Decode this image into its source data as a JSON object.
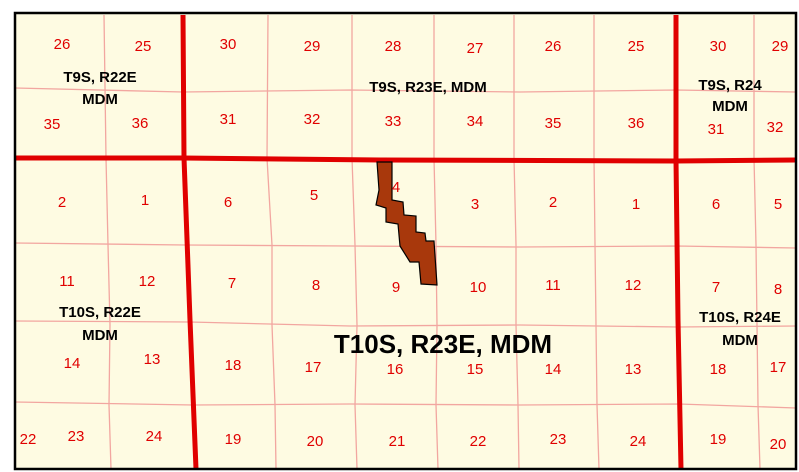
{
  "sections": [
    "26",
    "25",
    "30",
    "29",
    "28",
    "27",
    "26",
    "25",
    "30",
    "29",
    "35",
    "36",
    "31",
    "32",
    "33",
    "34",
    "35",
    "36",
    "31",
    "32",
    "2",
    "1",
    "6",
    "5",
    "4",
    "3",
    "2",
    "1",
    "6",
    "5",
    "11",
    "12",
    "7",
    "8",
    "9",
    "10",
    "11",
    "12",
    "7",
    "8",
    "14",
    "13",
    "18",
    "17",
    "16",
    "15",
    "14",
    "13",
    "18",
    "17",
    "22",
    "23",
    "24",
    "19",
    "20",
    "21",
    "22",
    "23",
    "24",
    "19",
    "20"
  ],
  "townships": [
    {
      "lines": [
        "T9S, R22E",
        "MDM"
      ]
    },
    {
      "lines": [
        "T9S, R23E, MDM"
      ]
    },
    {
      "lines": [
        "T9S, R24",
        "MDM"
      ]
    },
    {
      "lines": [
        "T10S, R22E",
        "MDM"
      ]
    },
    {
      "lines": [
        "T10S, R23E, MDM"
      ]
    },
    {
      "lines": [
        "T10S, R24E",
        "MDM"
      ]
    }
  ]
}
